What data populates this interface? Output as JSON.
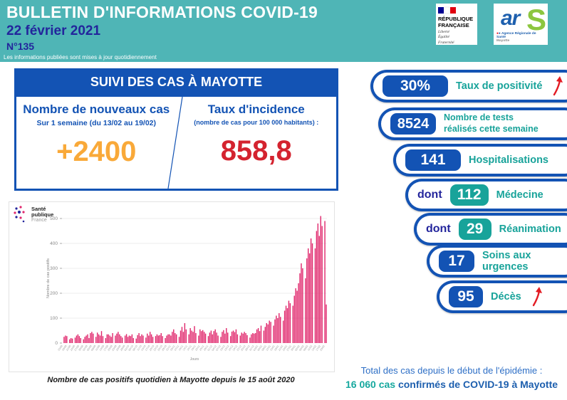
{
  "header": {
    "title": "BULLETIN D'INFORMATIONS COVID-19",
    "date": "22 février 2021",
    "issue": "N°135",
    "note": "Les informations publiées sont mises à jour quotidiennement"
  },
  "logos": {
    "republique": {
      "name_line1": "RÉPUBLIQUE",
      "name_line2": "FRANÇAISE",
      "motto_line1": "Liberté",
      "motto_line2": "Égalité",
      "motto_line3": "Fraternité"
    },
    "ars": {
      "ar": "ar",
      "s": "S",
      "org": "Agence Régionale de Santé",
      "region": "Mayotte"
    }
  },
  "suivi": {
    "title": "SUIVI DES CAS À MAYOTTE",
    "left": {
      "title": "Nombre de nouveaux cas",
      "subtitle": "Sur 1 semaine (du 13/02 au 19/02)",
      "value": "+2400"
    },
    "right": {
      "title": "Taux d'incidence",
      "subtitle": "(nombre de cas pour 100 000 habitants) :",
      "value": "858,8"
    }
  },
  "spf_logo": {
    "line1": "Santé",
    "line2": "publique",
    "line3": "France"
  },
  "chart_data": {
    "type": "bar",
    "title": "Nombre de cas positifs quotidien à Mayotte depuis le 15 août 2020",
    "xlabel": "Jours",
    "ylabel": "Nombre de cas positifs",
    "x_start_date": "15/08/2020",
    "x_end_date": "21/02/2021",
    "ylim": [
      0,
      520
    ],
    "yticks": [
      0,
      100,
      200,
      300,
      400,
      500
    ],
    "grid": true,
    "legend": false,
    "bar_color": "#e0256b",
    "values": [
      0,
      25,
      30,
      28,
      0,
      15,
      20,
      18,
      0,
      22,
      30,
      35,
      28,
      20,
      0,
      15,
      25,
      30,
      35,
      20,
      40,
      45,
      38,
      0,
      25,
      42,
      35,
      30,
      48,
      28,
      0,
      20,
      35,
      35,
      30,
      25,
      40,
      0,
      30,
      38,
      45,
      35,
      28,
      22,
      0,
      30,
      36,
      25,
      30,
      28,
      35,
      20,
      0,
      18,
      32,
      40,
      28,
      35,
      30,
      0,
      22,
      38,
      30,
      45,
      35,
      25,
      0,
      28,
      35,
      30,
      32,
      40,
      28,
      0,
      20,
      30,
      35,
      35,
      30,
      45,
      55,
      40,
      35,
      0,
      25,
      50,
      65,
      45,
      80,
      55,
      0,
      35,
      60,
      50,
      45,
      68,
      40,
      0,
      30,
      55,
      48,
      52,
      45,
      38,
      0,
      28,
      42,
      50,
      35,
      48,
      55,
      42,
      30,
      0,
      25,
      45,
      52,
      38,
      60,
      42,
      0,
      28,
      46,
      50,
      44,
      55,
      35,
      0,
      30,
      42,
      38,
      45,
      40,
      32,
      0,
      22,
      35,
      40,
      38,
      40,
      55,
      60,
      48,
      70,
      0,
      50,
      65,
      80,
      75,
      90,
      85,
      0,
      70,
      95,
      110,
      100,
      120,
      105,
      0,
      90,
      130,
      150,
      140,
      170,
      160,
      0,
      150,
      190,
      220,
      210,
      240,
      280,
      320,
      300,
      0,
      260,
      340,
      380,
      360,
      420,
      400,
      0,
      380,
      450,
      480,
      430,
      510,
      470,
      0,
      490,
      155
    ]
  },
  "chart_caption": "Nombre de cas positifs quotidien à Mayotte depuis le 15 août 2020",
  "pills": [
    {
      "value": "30%",
      "label": "Taux de positivité",
      "arrow": true
    },
    {
      "value": "8524",
      "label": "Nombre de tests",
      "label2": "réalisés cette semaine"
    },
    {
      "value": "141",
      "label": "Hospitalisations"
    },
    {
      "prefix": "dont",
      "value": "112",
      "label": "Médecine"
    },
    {
      "prefix": "dont",
      "value": "29",
      "label": "Réanimation"
    },
    {
      "value": "17",
      "label": "Soins aux urgences"
    },
    {
      "value": "95",
      "label": "Décès",
      "arrow": true
    }
  ],
  "total": {
    "line1": "Total des cas depuis le début de l'épidémie :",
    "value": "16 060 cas",
    "line2": "confirmés de COVID-19 à Mayotte"
  },
  "colors": {
    "header_teal": "#4fb5b6",
    "navy": "#23259c",
    "primary_blue": "#1353b4",
    "accent_teal": "#18a39a",
    "orange": "#f9a939",
    "red": "#d4232f",
    "bar_pink": "#e0256b",
    "arrow_red": "#e31b23"
  }
}
